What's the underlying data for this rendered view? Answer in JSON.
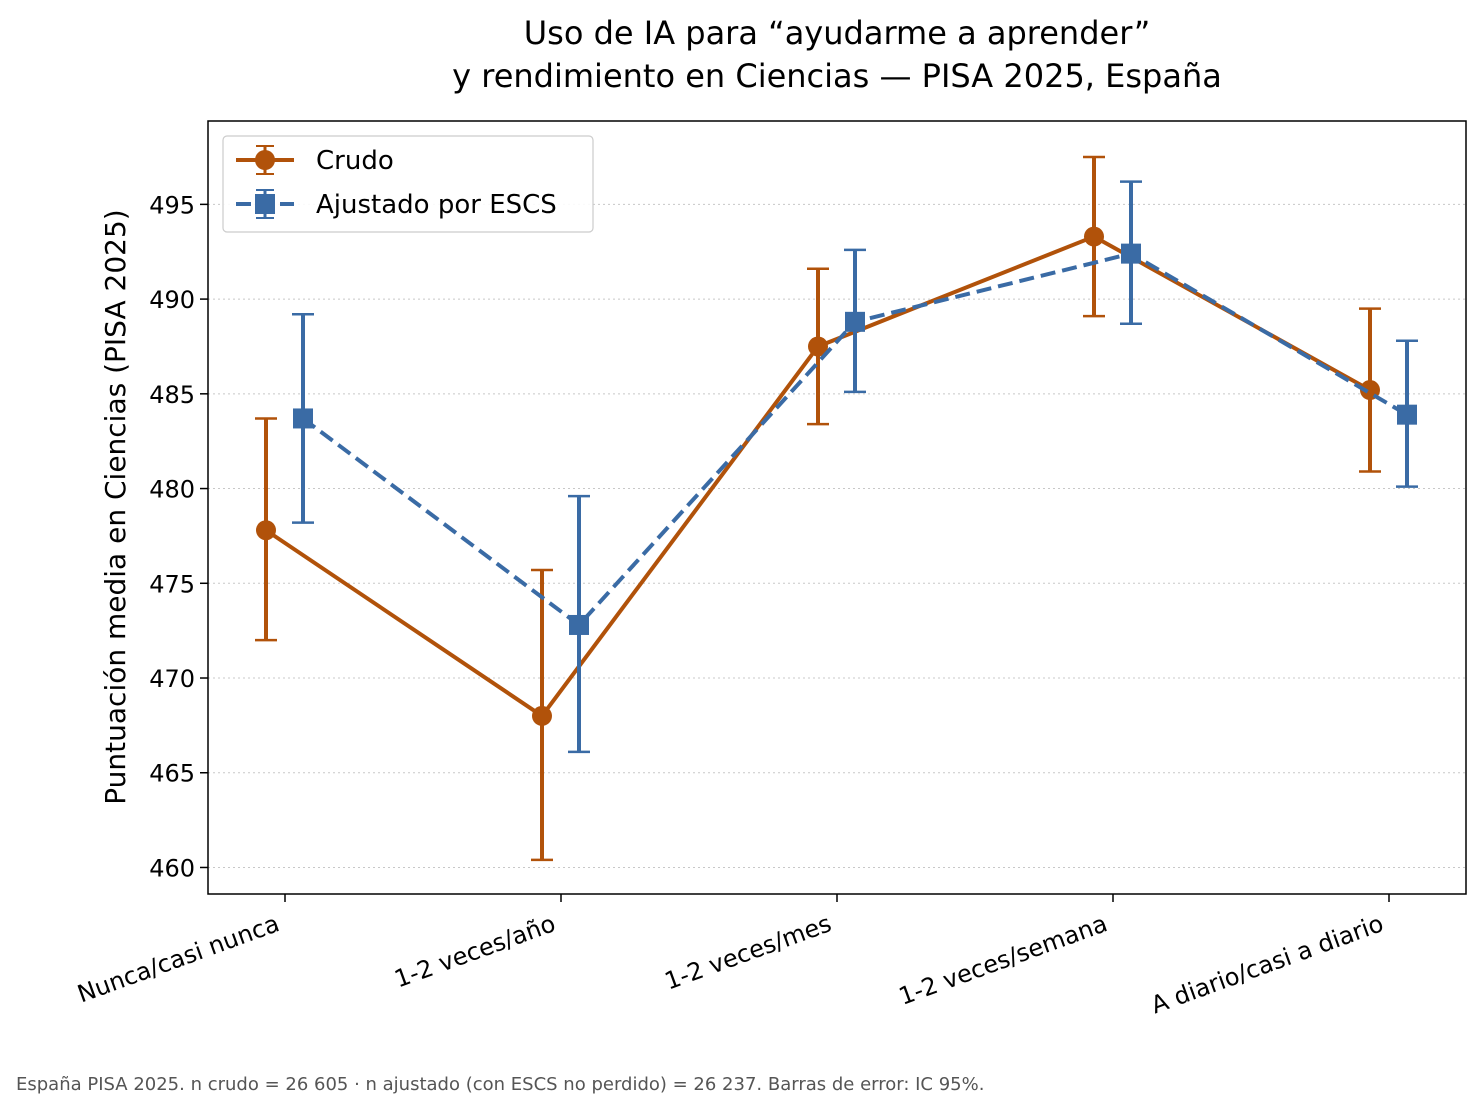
{
  "chart_data": {
    "type": "line",
    "title_line1": "Uso de IA para “ayudarme a aprender”",
    "title_line2": "y rendimiento en Ciencias — PISA 2025, España",
    "xlabel": "",
    "ylabel": "Puntuación media en Ciencias (PISA 2025)",
    "categories": [
      "Nunca/casi nunca",
      "1-2 veces/año",
      "1-2 veces/mes",
      "1-2 veces/semana",
      "A diario/casi a diario"
    ],
    "ylim": [
      458.6,
      499.4
    ],
    "yticks": [
      460,
      465,
      470,
      475,
      480,
      485,
      490,
      495
    ],
    "grid": "horizontal dotted",
    "legend_position": "top-left",
    "series": [
      {
        "name": "Crudo",
        "color": "#b1520a",
        "marker": "circle",
        "linestyle": "solid",
        "values": [
          477.8,
          468.0,
          487.5,
          493.3,
          485.2
        ],
        "ci_low": [
          472.0,
          460.4,
          483.4,
          489.1,
          480.9
        ],
        "ci_high": [
          483.7,
          475.7,
          491.6,
          497.5,
          489.5
        ]
      },
      {
        "name": "Ajustado por ESCS",
        "color": "#3a6ba5",
        "marker": "square",
        "linestyle": "dashed",
        "values": [
          483.7,
          472.8,
          488.8,
          492.4,
          483.9
        ],
        "ci_low": [
          478.2,
          466.1,
          485.1,
          488.7,
          480.1
        ],
        "ci_high": [
          489.2,
          479.6,
          492.6,
          496.2,
          487.8
        ]
      }
    ]
  },
  "footnote": "España  PISA 2025. n crudo = 26 605 · n ajustado (con ESCS no perdido) = 26 237. Barras de error: IC 95%."
}
